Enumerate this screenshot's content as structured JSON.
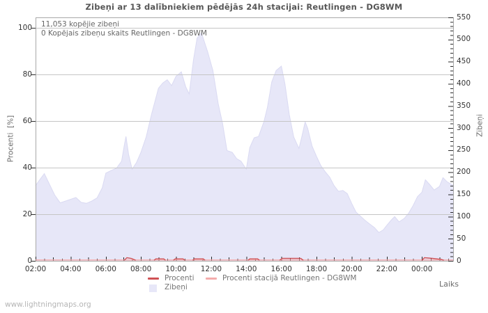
{
  "watermark": "www.lightningmaps.org",
  "chart_data": {
    "type": "area",
    "title": "Zibeņi ar 13 dalībniekiem pēdējās 24h stacijai: Reutlingen - DG8WM",
    "annotations": [
      "11,053 kopējie zibeņi",
      "0 Kopējais zibeņu skaits Reutlingen - DG8WM"
    ],
    "x_axis": {
      "label": "Laiks",
      "tick_labels": [
        "02:00",
        "04:00",
        "06:00",
        "08:00",
        "10:00",
        "12:00",
        "14:00",
        "16:00",
        "18:00",
        "20:00",
        "22:00",
        "00:00"
      ],
      "tick_hours": [
        2,
        4,
        6,
        8,
        10,
        12,
        14,
        16,
        18,
        20,
        22,
        24
      ],
      "range_hours": [
        2,
        25.78
      ],
      "minor_step_hours": 0.5
    },
    "y_left": {
      "label": "Procenti  [%]",
      "ticks": [
        0,
        20,
        40,
        60,
        80,
        100
      ],
      "range": [
        0,
        100
      ]
    },
    "y_right": {
      "label": "Zibeņi",
      "ticks": [
        0,
        50,
        100,
        150,
        200,
        250,
        300,
        350,
        400,
        450,
        500,
        550
      ],
      "range": [
        0,
        550
      ],
      "minor_step": 10
    },
    "grid": {
      "color": "#c5c5c5",
      "frame_color": "#a8a8a8",
      "tick_color": "#2a2a2a"
    },
    "legend": [
      {
        "label": "Procenti",
        "color": "#d05155",
        "type": "line"
      },
      {
        "label": "Procenti stacijā Reutlingen - DG8WM",
        "color": "#f4abab",
        "type": "line"
      },
      {
        "label": "Zibeņi",
        "color": "#e7e7f8",
        "type": "area"
      }
    ],
    "series": {
      "zibeni_area": {
        "name": "Zibeņi",
        "axis": "right",
        "fill": "#e7e7f8",
        "edge": "#dadaf2",
        "points": [
          [
            2.0,
            170
          ],
          [
            2.2,
            181
          ],
          [
            2.5,
            197
          ],
          [
            2.8,
            172
          ],
          [
            3.1,
            148
          ],
          [
            3.4,
            131
          ],
          [
            3.7,
            135
          ],
          [
            4.0,
            139
          ],
          [
            4.3,
            143
          ],
          [
            4.6,
            132
          ],
          [
            4.9,
            130
          ],
          [
            5.2,
            135
          ],
          [
            5.5,
            142
          ],
          [
            5.8,
            165
          ],
          [
            6.0,
            198
          ],
          [
            6.3,
            204
          ],
          [
            6.6,
            209
          ],
          [
            6.9,
            225
          ],
          [
            7.05,
            260
          ],
          [
            7.15,
            281
          ],
          [
            7.3,
            240
          ],
          [
            7.5,
            207
          ],
          [
            7.75,
            222
          ],
          [
            8.0,
            245
          ],
          [
            8.3,
            280
          ],
          [
            8.6,
            330
          ],
          [
            9.0,
            390
          ],
          [
            9.25,
            402
          ],
          [
            9.5,
            409
          ],
          [
            9.75,
            396
          ],
          [
            10.0,
            417
          ],
          [
            10.3,
            427
          ],
          [
            10.55,
            393
          ],
          [
            10.75,
            377
          ],
          [
            11.0,
            456
          ],
          [
            11.2,
            503
          ],
          [
            11.45,
            515
          ],
          [
            11.8,
            472
          ],
          [
            12.1,
            430
          ],
          [
            12.4,
            355
          ],
          [
            12.65,
            310
          ],
          [
            12.9,
            249
          ],
          [
            13.2,
            245
          ],
          [
            13.45,
            231
          ],
          [
            13.7,
            225
          ],
          [
            14.0,
            207
          ],
          [
            14.2,
            256
          ],
          [
            14.45,
            278
          ],
          [
            14.7,
            281
          ],
          [
            15.0,
            314
          ],
          [
            15.2,
            346
          ],
          [
            15.45,
            404
          ],
          [
            15.7,
            430
          ],
          [
            16.0,
            440
          ],
          [
            16.2,
            400
          ],
          [
            16.45,
            330
          ],
          [
            16.7,
            280
          ],
          [
            17.0,
            254
          ],
          [
            17.15,
            278
          ],
          [
            17.35,
            314
          ],
          [
            17.5,
            299
          ],
          [
            17.75,
            259
          ],
          [
            18.0,
            236
          ],
          [
            18.25,
            215
          ],
          [
            18.5,
            201
          ],
          [
            18.75,
            189
          ],
          [
            19.0,
            170
          ],
          [
            19.25,
            157
          ],
          [
            19.5,
            159
          ],
          [
            19.75,
            152
          ],
          [
            20.0,
            130
          ],
          [
            20.25,
            110
          ],
          [
            20.5,
            101
          ],
          [
            20.75,
            92
          ],
          [
            21.0,
            84
          ],
          [
            21.3,
            75
          ],
          [
            21.55,
            64
          ],
          [
            21.8,
            70
          ],
          [
            22.0,
            80
          ],
          [
            22.25,
            92
          ],
          [
            22.45,
            100
          ],
          [
            22.7,
            88
          ],
          [
            23.0,
            96
          ],
          [
            23.25,
            108
          ],
          [
            23.5,
            125
          ],
          [
            23.75,
            145
          ],
          [
            24.0,
            155
          ],
          [
            24.2,
            183
          ],
          [
            24.45,
            172
          ],
          [
            24.7,
            160
          ],
          [
            25.0,
            168
          ],
          [
            25.2,
            188
          ],
          [
            25.45,
            178
          ],
          [
            25.78,
            171
          ]
        ]
      },
      "procenti_line": {
        "name": "Procenti",
        "axis": "left",
        "color": "#d05155",
        "segments": [
          [
            [
              7.05,
              0
            ],
            [
              7.2,
              1.1
            ],
            [
              7.45,
              0.8
            ],
            [
              7.7,
              0
            ]
          ],
          [
            [
              8.75,
              0
            ],
            [
              8.85,
              0.6
            ],
            [
              9.3,
              0.6
            ],
            [
              9.4,
              0
            ]
          ],
          [
            [
              9.85,
              0
            ],
            [
              9.95,
              0.6
            ],
            [
              10.4,
              0.6
            ],
            [
              10.5,
              0
            ]
          ],
          [
            [
              10.95,
              0
            ],
            [
              11.05,
              0.6
            ],
            [
              11.55,
              0.6
            ],
            [
              11.65,
              0
            ]
          ],
          [
            [
              14.1,
              0
            ],
            [
              14.2,
              0.6
            ],
            [
              14.65,
              0.6
            ],
            [
              14.75,
              0
            ]
          ],
          [
            [
              15.9,
              0
            ],
            [
              16.05,
              0.8
            ],
            [
              17.1,
              0.8
            ],
            [
              17.25,
              0
            ]
          ],
          [
            [
              24.0,
              0
            ],
            [
              24.15,
              1.1
            ],
            [
              24.6,
              0.8
            ],
            [
              25.1,
              0.4
            ],
            [
              25.25,
              0
            ]
          ]
        ]
      },
      "procenti_station_line": {
        "name": "Procenti stacijā Reutlingen - DG8WM",
        "axis": "left",
        "color": "#f4abab",
        "value": 0
      }
    }
  }
}
